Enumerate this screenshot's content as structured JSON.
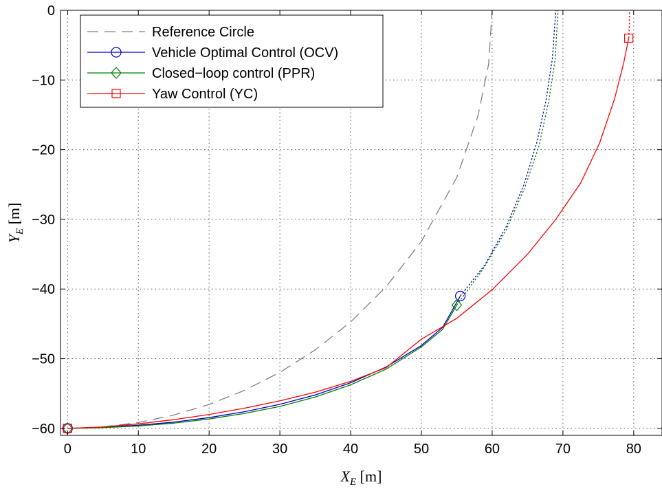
{
  "chart_data": {
    "type": "line",
    "title": "",
    "xlabel": {
      "base": "X",
      "sub": "E",
      "unit": " [m]"
    },
    "ylabel": {
      "base": "Y",
      "sub": "E",
      "unit": " [m]"
    },
    "xlim": [
      -1,
      84
    ],
    "ylim": [
      -61,
      0
    ],
    "xticks": [
      0,
      10,
      20,
      30,
      40,
      50,
      60,
      70,
      80
    ],
    "yticks": [
      0,
      -10,
      -20,
      -30,
      -40,
      -50,
      -60
    ],
    "xtick_labels": [
      "0",
      "10",
      "20",
      "30",
      "40",
      "50",
      "60",
      "70",
      "80"
    ],
    "ytick_labels": [
      "0",
      "−10",
      "−20",
      "−30",
      "−40",
      "−50",
      "−60"
    ],
    "grid": true,
    "legend_position": "top-left",
    "series": [
      {
        "name": "Reference Circle",
        "color": "#808080",
        "style": "dashed",
        "marker": "none",
        "points": [
          [
            0,
            -60
          ],
          [
            5,
            -59.79
          ],
          [
            10,
            -59.16
          ],
          [
            15,
            -58.09
          ],
          [
            20,
            -56.57
          ],
          [
            25,
            -54.54
          ],
          [
            30,
            -51.96
          ],
          [
            35,
            -48.73
          ],
          [
            40,
            -44.72
          ],
          [
            45,
            -39.69
          ],
          [
            50,
            -33.17
          ],
          [
            55,
            -23.98
          ],
          [
            58,
            -15.1
          ],
          [
            59.5,
            -7.73
          ],
          [
            60,
            0
          ]
        ]
      },
      {
        "name": "Vehicle Optimal Control (OCV)",
        "color": "#0000cc",
        "style": "solid",
        "marker": "circle",
        "marker_points": [
          [
            0,
            -60
          ],
          [
            55.5,
            -41
          ]
        ],
        "points": [
          [
            0,
            -60
          ],
          [
            5,
            -59.85
          ],
          [
            10,
            -59.55
          ],
          [
            15,
            -59.1
          ],
          [
            20,
            -58.45
          ],
          [
            25,
            -57.6
          ],
          [
            30,
            -56.55
          ],
          [
            35,
            -55.2
          ],
          [
            40,
            -53.45
          ],
          [
            45,
            -51.2
          ],
          [
            50,
            -48.1
          ],
          [
            53,
            -45.5
          ],
          [
            55.5,
            -41
          ]
        ],
        "continuation_style": "dotted",
        "continuation_points": [
          [
            55.5,
            -41
          ],
          [
            59,
            -36.5
          ],
          [
            62,
            -31
          ],
          [
            64.5,
            -25
          ],
          [
            66.3,
            -19
          ],
          [
            67.6,
            -13
          ],
          [
            68.5,
            -7
          ],
          [
            69,
            0
          ]
        ]
      },
      {
        "name": "Closed−loop control (PPR)",
        "color": "#008000",
        "style": "solid",
        "marker": "diamond",
        "marker_points": [
          [
            0,
            -60
          ],
          [
            55,
            -42.3
          ]
        ],
        "points": [
          [
            0,
            -60
          ],
          [
            5,
            -59.9
          ],
          [
            10,
            -59.65
          ],
          [
            15,
            -59.25
          ],
          [
            20,
            -58.65
          ],
          [
            25,
            -57.85
          ],
          [
            30,
            -56.85
          ],
          [
            35,
            -55.5
          ],
          [
            40,
            -53.75
          ],
          [
            45,
            -51.5
          ],
          [
            50,
            -48.3
          ],
          [
            53,
            -45.8
          ],
          [
            55,
            -42.3
          ]
        ],
        "continuation_style": "dotted",
        "continuation_points": [
          [
            55,
            -42.3
          ],
          [
            58.8,
            -37
          ],
          [
            62,
            -31.5
          ],
          [
            64.6,
            -25.5
          ],
          [
            66.6,
            -19.5
          ],
          [
            68,
            -13
          ],
          [
            68.9,
            -7
          ],
          [
            69.3,
            0
          ]
        ]
      },
      {
        "name": "Yaw Control (YC)",
        "color": "#ff0000",
        "style": "solid",
        "marker": "square",
        "marker_points": [
          [
            0,
            -60
          ],
          [
            79.3,
            -4
          ]
        ],
        "points": [
          [
            0,
            -60
          ],
          [
            5,
            -59.8
          ],
          [
            10,
            -59.35
          ],
          [
            15,
            -58.75
          ],
          [
            20,
            -58
          ],
          [
            25,
            -57.1
          ],
          [
            30,
            -56.05
          ],
          [
            35,
            -54.8
          ],
          [
            40,
            -53.25
          ],
          [
            45,
            -51.3
          ],
          [
            50,
            -47.2
          ],
          [
            55,
            -44.2
          ],
          [
            60,
            -40.1
          ],
          [
            65,
            -35
          ],
          [
            69,
            -30
          ],
          [
            72.5,
            -24.8
          ],
          [
            75.2,
            -19
          ],
          [
            77.3,
            -12.7
          ],
          [
            78.6,
            -7.5
          ],
          [
            79.3,
            -4
          ]
        ],
        "continuation_style": "dotted",
        "continuation_points": [
          [
            79.3,
            -4
          ],
          [
            79.4,
            -2
          ],
          [
            79.4,
            0
          ]
        ]
      }
    ]
  }
}
